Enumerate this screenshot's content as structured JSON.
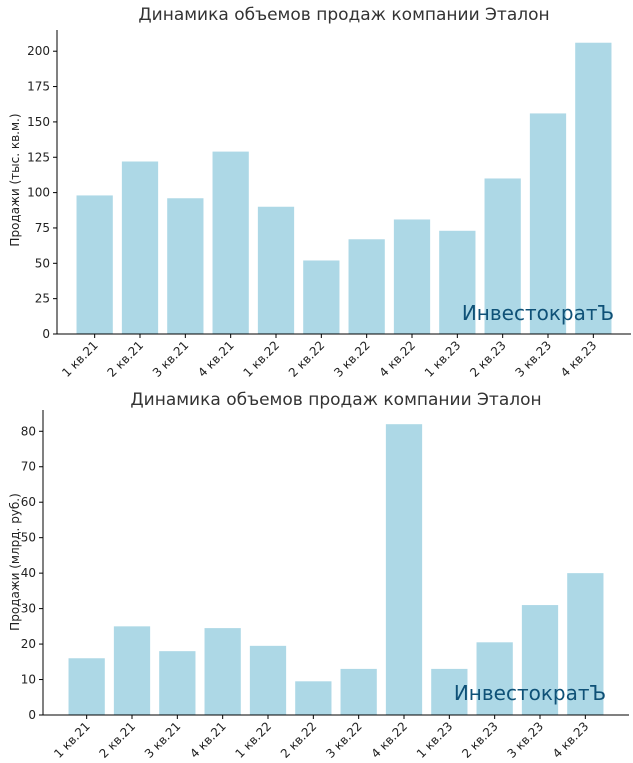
{
  "colors": {
    "bar": "#add8e6",
    "watermark": "#0f5177",
    "axis": "#000000"
  },
  "chart_data": [
    {
      "type": "bar",
      "title": "Динамика объемов продаж компании Эталон",
      "xlabel": "",
      "ylabel": "Продажи (тыс. кв.м.)",
      "categories": [
        "1 кв.21",
        "2 кв.21",
        "3 кв.21",
        "4 кв.21",
        "1 кв.22",
        "2 кв.22",
        "3 кв.22",
        "4 кв.22",
        "1 кв.23",
        "2 кв.23",
        "3 кв.23",
        "4 кв.23"
      ],
      "values": [
        98,
        122,
        96,
        129,
        90,
        52,
        67,
        81,
        73,
        110,
        156,
        206
      ],
      "ylim": [
        0,
        215
      ],
      "yticks": [
        0,
        25,
        50,
        75,
        100,
        125,
        150,
        175,
        200
      ],
      "grid": false,
      "watermark": "ИнвестократЪ"
    },
    {
      "type": "bar",
      "title": "Динамика объемов продаж компании Эталон",
      "xlabel": "",
      "ylabel": "Продажи (млрд. руб.)",
      "categories": [
        "1 кв.21",
        "2 кв.21",
        "3 кв.21",
        "4 кв.21",
        "1 кв.22",
        "2 кв.22",
        "3 кв.22",
        "4 кв.22",
        "1 кв.23",
        "2 кв.23",
        "3 кв.23",
        "4 кв.23"
      ],
      "values": [
        16,
        25,
        18,
        24.5,
        19.5,
        9.5,
        13,
        82,
        13,
        20.5,
        31,
        40
      ],
      "ylim": [
        0,
        86
      ],
      "yticks": [
        0,
        10,
        20,
        30,
        40,
        50,
        60,
        70,
        80
      ],
      "grid": false,
      "watermark": "ИнвестократЪ"
    }
  ]
}
